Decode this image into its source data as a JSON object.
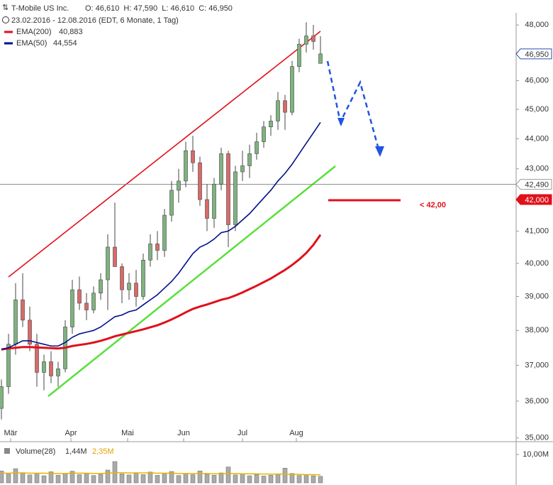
{
  "chart_data": {
    "type": "candlestick",
    "title": "T-Mobile US Inc.",
    "ohlc_label": "O: 46,610  H: 47,590  L: 46,610  C: 46,950",
    "subtitle": "23.02.2016 - 12.08.2016 (EDT, 6 Monate, 1 Tag)",
    "xlim": [
      -0.2,
      45.8
    ],
    "xticks": [
      {
        "value": 1.3,
        "label": "Mär"
      },
      {
        "value": 9.8,
        "label": "Apr"
      },
      {
        "value": 17.8,
        "label": "Mai"
      },
      {
        "value": 25.7,
        "label": "Jun"
      },
      {
        "value": 34,
        "label": "Jul"
      },
      {
        "value": 41.6,
        "label": "Aug"
      }
    ],
    "log_scale": true,
    "ylim": [
      34900,
      48450
    ],
    "yticks": [
      {
        "value": 35000,
        "label": "35,000"
      },
      {
        "value": 36000,
        "label": "36,000"
      },
      {
        "value": 37000,
        "label": "37,000"
      },
      {
        "value": 38000,
        "label": "38,000"
      },
      {
        "value": 39000,
        "label": "39,000"
      },
      {
        "value": 40000,
        "label": "40,000"
      },
      {
        "value": 41000,
        "label": "41,000"
      },
      {
        "value": 42000,
        "label": "42,000"
      },
      {
        "value": 43000,
        "label": "43,000"
      },
      {
        "value": 44000,
        "label": "44,000"
      },
      {
        "value": 45000,
        "label": "45,000"
      },
      {
        "value": 46000,
        "label": "46,000"
      },
      {
        "value": 47000,
        "label": "47,000"
      },
      {
        "value": 48000,
        "label": "48,000"
      }
    ],
    "up_color": "#7fb27f",
    "down_color": "#d86a6a",
    "candles": {
      "open": [
        35800,
        36400,
        37600,
        38900,
        38300,
        37600,
        36800,
        37100,
        36700,
        36900,
        38100,
        39200,
        38800,
        38600,
        39100,
        39500,
        40500,
        39900,
        39200,
        39400,
        39000,
        40100,
        40600,
        40400,
        41500,
        42300,
        42600,
        43600,
        43200,
        42000,
        41400,
        42500,
        43500,
        41200,
        42900,
        43100,
        43500,
        43900,
        44400,
        44600,
        45300,
        44900,
        46500,
        47300,
        47600,
        46610
      ],
      "high": [
        36600,
        37900,
        39400,
        39700,
        38700,
        37900,
        37300,
        37400,
        37100,
        38300,
        39500,
        39600,
        39100,
        39300,
        39700,
        40900,
        41900,
        40000,
        39700,
        39800,
        40300,
        40900,
        41000,
        41700,
        42600,
        43000,
        43900,
        44100,
        43400,
        42500,
        42700,
        43700,
        43600,
        43100,
        43600,
        43800,
        44200,
        44600,
        44800,
        45600,
        45500,
        46700,
        47500,
        48100,
        48000,
        47590
      ],
      "low": [
        35500,
        36200,
        37300,
        38100,
        37400,
        36400,
        36300,
        36500,
        36400,
        36800,
        37900,
        38600,
        38300,
        38500,
        38900,
        38600,
        40200,
        38800,
        38900,
        38700,
        38900,
        39900,
        40100,
        40200,
        41300,
        41900,
        42400,
        42900,
        41800,
        41000,
        41100,
        42300,
        40500,
        41000,
        42600,
        42700,
        43300,
        43700,
        44100,
        44300,
        44300,
        44800,
        46300,
        47000,
        47100,
        46610
      ],
      "close": [
        36400,
        37600,
        38900,
        38300,
        37600,
        36800,
        37100,
        36700,
        36900,
        38100,
        39200,
        38800,
        38600,
        39100,
        39500,
        40500,
        39900,
        39200,
        39400,
        39000,
        40100,
        40600,
        40400,
        41500,
        42300,
        42600,
        43600,
        43200,
        42000,
        41400,
        42500,
        43500,
        41200,
        42900,
        43100,
        43500,
        43900,
        44400,
        44600,
        45300,
        44900,
        46500,
        47300,
        47600,
        47400,
        46950
      ]
    },
    "series": [
      {
        "name": "EMA(200)",
        "value_label": "40,883",
        "color": "#e0101a",
        "width": 3,
        "values": [
          37450,
          37480,
          37500,
          37520,
          37520,
          37510,
          37500,
          37490,
          37480,
          37500,
          37550,
          37580,
          37610,
          37650,
          37700,
          37760,
          37830,
          37880,
          37930,
          37980,
          38030,
          38090,
          38150,
          38230,
          38320,
          38420,
          38530,
          38630,
          38700,
          38760,
          38830,
          38900,
          38950,
          39030,
          39120,
          39220,
          39320,
          39430,
          39540,
          39670,
          39800,
          39950,
          40120,
          40320,
          40570,
          40883
        ]
      },
      {
        "name": "EMA(50)",
        "value_label": "44,554",
        "color": "#00108a",
        "width": 1.6,
        "values": [
          37450,
          37500,
          37600,
          37700,
          37700,
          37650,
          37600,
          37550,
          37550,
          37650,
          37800,
          37900,
          37950,
          38000,
          38100,
          38250,
          38400,
          38450,
          38550,
          38600,
          38750,
          38900,
          39050,
          39250,
          39450,
          39700,
          40000,
          40300,
          40500,
          40600,
          40750,
          40950,
          41000,
          41150,
          41350,
          41550,
          41800,
          42050,
          42300,
          42600,
          42850,
          43150,
          43500,
          43850,
          44200,
          44554
        ]
      }
    ],
    "price_levels": [
      {
        "value": 46950,
        "label": "46,950",
        "style": "box"
      },
      {
        "value": 42490,
        "label": "42,490",
        "style": "line"
      },
      {
        "value": 42000,
        "label": "42,000",
        "style": "red"
      }
    ],
    "annotation": "< 42,00",
    "volume": {
      "label": "Volume(28)",
      "stats": [
        "1,44M",
        "2,35M"
      ],
      "ylim": [
        0,
        12
      ],
      "yticks": [
        {
          "value": 10,
          "label": "10,00M"
        }
      ],
      "values": [
        4.2,
        3.1,
        5.0,
        3.6,
        2.8,
        3.3,
        2.5,
        3.9,
        2.7,
        3.2,
        4.1,
        2.9,
        3.4,
        2.6,
        3.0,
        4.5,
        7.5,
        3.2,
        2.8,
        3.6,
        2.9,
        3.8,
        2.7,
        3.1,
        4.0,
        2.6,
        3.3,
        2.9,
        4.2,
        3.0,
        2.7,
        3.5,
        5.6,
        2.8,
        3.1,
        2.5,
        2.9,
        2.4,
        2.7,
        3.0,
        5.2,
        3.3,
        2.6,
        2.9,
        2.5,
        2.3
      ],
      "average": [
        3.4,
        3.4,
        3.5,
        3.5,
        3.4,
        3.4,
        3.4,
        3.3,
        3.3,
        3.3,
        3.4,
        3.4,
        3.4,
        3.3,
        3.3,
        3.4,
        3.6,
        3.6,
        3.5,
        3.5,
        3.5,
        3.5,
        3.4,
        3.4,
        3.4,
        3.3,
        3.3,
        3.3,
        3.3,
        3.3,
        3.2,
        3.2,
        3.3,
        3.3,
        3.2,
        3.2,
        3.2,
        3.1,
        3.1,
        3.1,
        3.1,
        3.0,
        3.0,
        2.9,
        2.9,
        2.8
      ]
    }
  }
}
